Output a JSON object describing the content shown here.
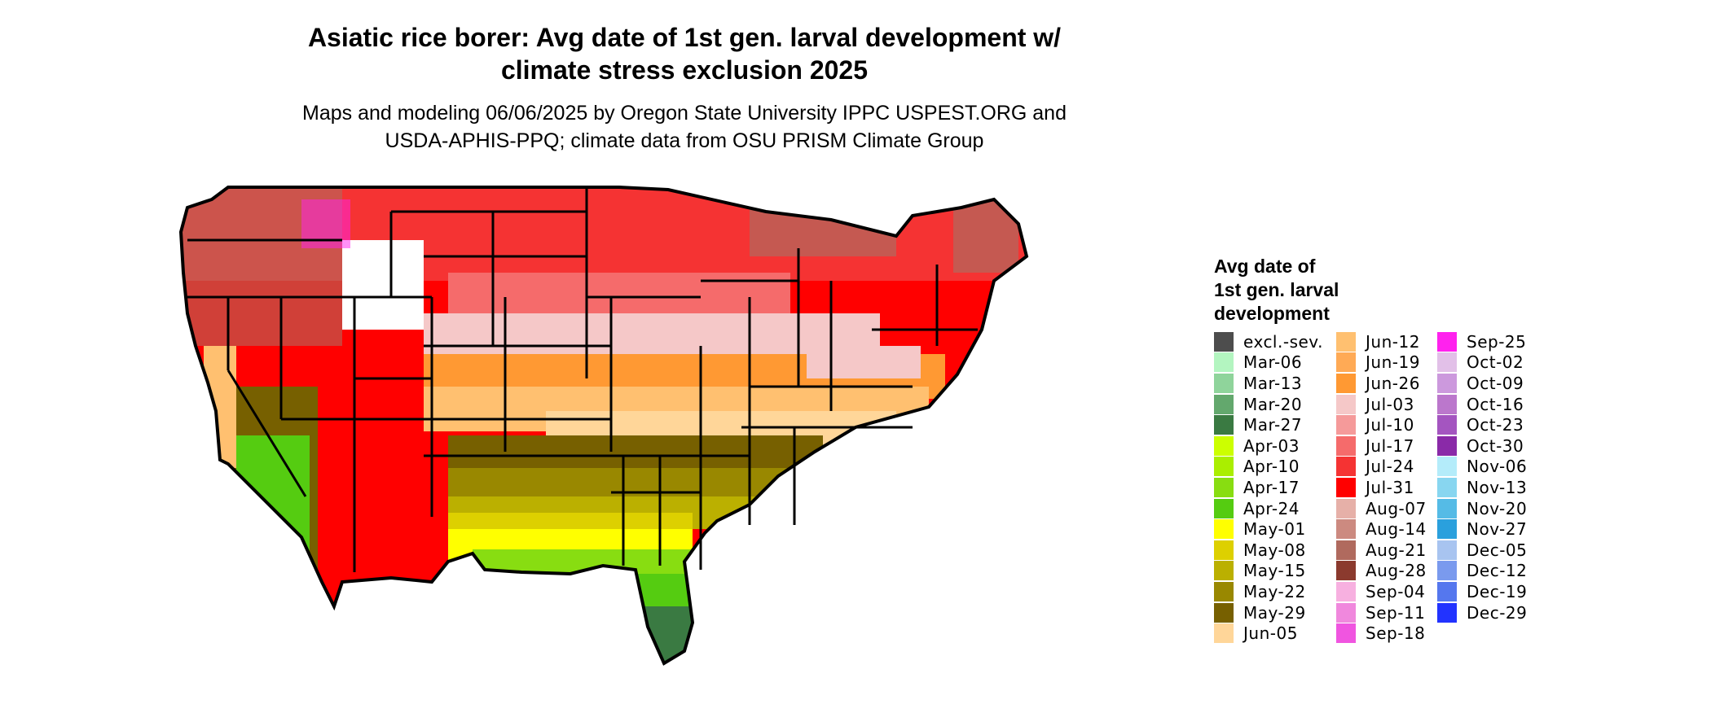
{
  "title_line1": "Asiatic rice borer: Avg date of 1st gen. larval development w/",
  "title_line2": "climate stress exclusion 2025",
  "subtitle_line1": "Maps and modeling 06/06/2025 by Oregon State University IPPC USPEST.ORG and",
  "subtitle_line2": "USDA-APHIS-PPQ; climate data from OSU PRISM Climate Group",
  "legend": {
    "title_line1": "Avg date of",
    "title_line2": "1st gen. larval",
    "title_line3": "development",
    "items": [
      {
        "label": "excl.-sev.",
        "color": "#4d4d4d"
      },
      {
        "label": "Mar-06",
        "color": "#b3f5c0"
      },
      {
        "label": "Mar-13",
        "color": "#8fd49b"
      },
      {
        "label": "Mar-20",
        "color": "#63a86d"
      },
      {
        "label": "Mar-27",
        "color": "#3a7a42"
      },
      {
        "label": "Apr-03",
        "color": "#ccff00"
      },
      {
        "label": "Apr-10",
        "color": "#aaee00"
      },
      {
        "label": "Apr-17",
        "color": "#88dd11"
      },
      {
        "label": "Apr-24",
        "color": "#55cc11"
      },
      {
        "label": "May-01",
        "color": "#ffff00"
      },
      {
        "label": "May-08",
        "color": "#ddd000"
      },
      {
        "label": "May-15",
        "color": "#bbb000"
      },
      {
        "label": "May-22",
        "color": "#998800"
      },
      {
        "label": "May-29",
        "color": "#776000"
      },
      {
        "label": "Jun-05",
        "color": "#ffd699"
      },
      {
        "label": "Jun-12",
        "color": "#ffc070"
      },
      {
        "label": "Jun-19",
        "color": "#ffaa55"
      },
      {
        "label": "Jun-26",
        "color": "#ff9933"
      },
      {
        "label": "Jul-03",
        "color": "#f5c8c8"
      },
      {
        "label": "Jul-10",
        "color": "#f59a9a"
      },
      {
        "label": "Jul-17",
        "color": "#f56b6b"
      },
      {
        "label": "Jul-24",
        "color": "#f53333"
      },
      {
        "label": "Jul-31",
        "color": "#ff0000"
      },
      {
        "label": "Aug-07",
        "color": "#e6b0a8"
      },
      {
        "label": "Aug-14",
        "color": "#cc8a80"
      },
      {
        "label": "Aug-21",
        "color": "#b06a5e"
      },
      {
        "label": "Aug-28",
        "color": "#8b3a2e"
      },
      {
        "label": "Sep-04",
        "color": "#f7b0e0"
      },
      {
        "label": "Sep-11",
        "color": "#f088dd"
      },
      {
        "label": "Sep-18",
        "color": "#f055e0"
      },
      {
        "label": "Sep-25",
        "color": "#ff22ee"
      },
      {
        "label": "Oct-02",
        "color": "#e2c0e8"
      },
      {
        "label": "Oct-09",
        "color": "#cc99dd"
      },
      {
        "label": "Oct-16",
        "color": "#bb77cc"
      },
      {
        "label": "Oct-23",
        "color": "#a455c0"
      },
      {
        "label": "Oct-30",
        "color": "#8a2aa8"
      },
      {
        "label": "Nov-06",
        "color": "#b4ecfa"
      },
      {
        "label": "Nov-13",
        "color": "#88d6f0"
      },
      {
        "label": "Nov-20",
        "color": "#55bbe6"
      },
      {
        "label": "Nov-27",
        "color": "#2aa0dd"
      },
      {
        "label": "Dec-05",
        "color": "#a8c4f0"
      },
      {
        "label": "Dec-12",
        "color": "#7a9aee"
      },
      {
        "label": "Dec-19",
        "color": "#5577ee"
      },
      {
        "label": "Dec-29",
        "color": "#2233ff"
      }
    ]
  },
  "map": {
    "region": "Contiguous United States",
    "state_border_color": "#000000",
    "band_colors": [
      "#ff0000",
      "#f56b6b",
      "#f5c8c8",
      "#ff9933",
      "#ffc070",
      "#ffd699",
      "#776000",
      "#998800",
      "#bbb000",
      "#ddd000",
      "#ffff00",
      "#88dd11",
      "#55cc11",
      "#3a7a42",
      "#b06a5e",
      "#ffffff",
      "#ff22ee"
    ]
  }
}
